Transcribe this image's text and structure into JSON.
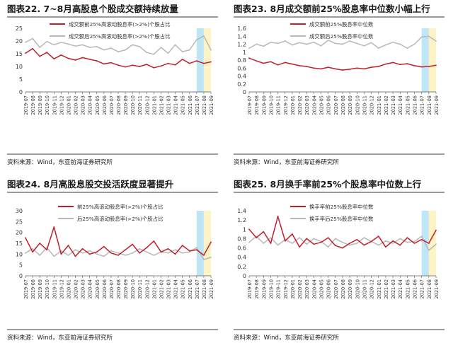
{
  "chart_data": [
    {
      "type": "line",
      "title": "图表22. 7~8月高股息个股成交额持续放量",
      "source": "资料来源：Wind，东亚前海证券研究所",
      "ylim": [
        0,
        25
      ],
      "yticks": [
        "0",
        "5",
        "10",
        "15",
        "20",
        "25"
      ],
      "x_dates": [
        "2019-07",
        "2019-08",
        "2019-09",
        "2019-10",
        "2019-11",
        "2019-12",
        "2020-01",
        "2020-02",
        "2020-03",
        "2020-04",
        "2020-05",
        "2020-06",
        "2020-07",
        "2020-08",
        "2020-09",
        "2020-10",
        "2020-11",
        "2020-12",
        "2021-01",
        "2021-02",
        "2021-03",
        "2021-04",
        "2021-05",
        "2021-06",
        "2021-07",
        "2021-08",
        "2021-09"
      ],
      "legend_placement": "top-center",
      "highlight": [
        {
          "from": "2021-07",
          "to": "2021-08",
          "color": "#bfe6f7"
        },
        {
          "from": "2021-08",
          "to": "2021-09",
          "color": "#fdf3c4"
        }
      ],
      "series": [
        {
          "name": "成交额前25%高滚动股息率(>2%)个股占比",
          "color": "#c0202a",
          "values": [
            15.2,
            17.0,
            14.0,
            15.5,
            13.0,
            14.5,
            13.2,
            12.5,
            13.5,
            12.8,
            12.2,
            11.0,
            11.5,
            10.5,
            9.8,
            10.5,
            10.0,
            10.8,
            9.5,
            10.2,
            11.2,
            10.6,
            12.8,
            11.2,
            12.2,
            11.2,
            11.8
          ]
        },
        {
          "name": "成交额后25%高滚动股息率(>2%)个股占比",
          "color": "#b8b8b8",
          "values": [
            19.5,
            21.0,
            17.5,
            19.8,
            18.5,
            19.5,
            18.8,
            18.0,
            18.5,
            17.5,
            17.8,
            16.5,
            17.2,
            15.8,
            16.5,
            18.5,
            17.8,
            15.5,
            14.8,
            17.5,
            15.2,
            18.5,
            15.8,
            16.5,
            20.5,
            22.0,
            16.5
          ]
        }
      ]
    },
    {
      "type": "line",
      "title": "图表23. 8月成交额前25%股息率中位数小幅上行",
      "source": "资料来源：Wind，东亚前海证券研究所",
      "ylim": [
        0,
        1.6
      ],
      "yticks": [
        "0",
        "0.2",
        "0.4",
        "0.6",
        "0.8",
        "1",
        "1.2",
        "1.4",
        "1.6"
      ],
      "x_dates": [
        "2019-07",
        "2019-08",
        "2019-09",
        "2019-10",
        "2019-11",
        "2019-12",
        "2020-01",
        "2020-02",
        "2020-03",
        "2020-04",
        "2020-05",
        "2020-06",
        "2020-07",
        "2020-08",
        "2020-09",
        "2020-10",
        "2020-11",
        "2020-12",
        "2021-01",
        "2021-02",
        "2021-03",
        "2021-04",
        "2021-05",
        "2021-06",
        "2021-07",
        "2021-08",
        "2021-09"
      ],
      "legend_placement": "top-center",
      "highlight": [
        {
          "from": "2021-07",
          "to": "2021-08",
          "color": "#bfe6f7"
        },
        {
          "from": "2021-08",
          "to": "2021-09",
          "color": "#fdf3c4"
        }
      ],
      "series": [
        {
          "name": "成交额前25%股息率中位数",
          "color": "#c0202a",
          "values": [
            0.85,
            0.78,
            0.72,
            0.76,
            0.68,
            0.74,
            0.7,
            0.66,
            0.64,
            0.6,
            0.58,
            0.62,
            0.58,
            0.55,
            0.57,
            0.6,
            0.58,
            0.62,
            0.64,
            0.7,
            0.74,
            0.69,
            0.71,
            0.66,
            0.63,
            0.64,
            0.67
          ]
        },
        {
          "name": "成交额后25%股息率中位数",
          "color": "#b8b8b8",
          "values": [
            1.1,
            1.2,
            1.15,
            1.25,
            1.22,
            1.28,
            1.18,
            1.24,
            1.2,
            1.25,
            1.16,
            1.3,
            1.22,
            1.2,
            1.28,
            1.22,
            1.16,
            1.24,
            1.1,
            1.18,
            1.25,
            1.2,
            1.1,
            1.2,
            1.38,
            1.4,
            1.28
          ]
        }
      ]
    },
    {
      "type": "line",
      "title": "图表24. 8月高股息股交投活跃度显著提升",
      "source": "资料来源：Wind，东亚前海证券研究所",
      "ylim": [
        0,
        30
      ],
      "yticks": [
        "0",
        "5",
        "10",
        "15",
        "20",
        "25",
        "30"
      ],
      "x_dates": [
        "2019-07",
        "2019-08",
        "2019-09",
        "2019-10",
        "2019-11",
        "2019-12",
        "2020-01",
        "2020-02",
        "2020-03",
        "2020-04",
        "2020-05",
        "2020-06",
        "2020-07",
        "2020-08",
        "2020-09",
        "2020-10",
        "2020-11",
        "2020-12",
        "2021-01",
        "2021-02",
        "2021-03",
        "2021-04",
        "2021-05",
        "2021-06",
        "2021-07",
        "2021-08",
        "2021-09"
      ],
      "legend_placement": "top-center",
      "highlight": [
        {
          "from": "2021-07",
          "to": "2021-08",
          "color": "#bfe6f7"
        },
        {
          "from": "2021-08",
          "to": "2021-09",
          "color": "#fdf3c4"
        }
      ],
      "series": [
        {
          "name": "前25%高滚动股息率(>2%)个股占比",
          "color": "#c0202a",
          "values": [
            17.5,
            11.0,
            15.0,
            12.0,
            22.5,
            10.0,
            14.0,
            9.0,
            12.5,
            10.0,
            11.0,
            13.5,
            10.5,
            9.5,
            12.0,
            14.5,
            10.5,
            13.0,
            16.0,
            11.0,
            12.5,
            10.0,
            14.0,
            11.5,
            12.0,
            9.5,
            15.5
          ]
        },
        {
          "name": "后25%高滚动股息率(>2%)个股占比",
          "color": "#b8b8b8",
          "values": [
            10.5,
            12.5,
            9.5,
            13.0,
            9.0,
            11.5,
            9.5,
            12.0,
            10.5,
            11.5,
            10.0,
            9.0,
            11.5,
            10.5,
            9.5,
            10.5,
            12.5,
            11.0,
            9.5,
            11.0,
            10.5,
            12.0,
            10.5,
            11.0,
            13.0,
            7.5,
            8.5
          ]
        }
      ]
    },
    {
      "type": "line",
      "title": "图表25. 8月换手率前25%个股息率中位数上行",
      "source": "资料来源：Wind，东亚前海证券研究所",
      "ylim": [
        0,
        1.4
      ],
      "yticks": [
        "0",
        "0.2",
        "0.4",
        "0.6",
        "0.8",
        "1",
        "1.2",
        "1.4"
      ],
      "x_dates": [
        "2019-07",
        "2019-08",
        "2019-09",
        "2019-10",
        "2019-11",
        "2019-12",
        "2020-01",
        "2020-02",
        "2020-03",
        "2020-04",
        "2020-05",
        "2020-06",
        "2020-07",
        "2020-08",
        "2020-09",
        "2020-10",
        "2020-11",
        "2020-12",
        "2021-01",
        "2021-02",
        "2021-03",
        "2021-04",
        "2021-05",
        "2021-06",
        "2021-07",
        "2021-08",
        "2021-09"
      ],
      "legend_placement": "top-center",
      "highlight": [
        {
          "from": "2021-07",
          "to": "2021-08",
          "color": "#bfe6f7"
        },
        {
          "from": "2021-08",
          "to": "2021-09",
          "color": "#fdf3c4"
        }
      ],
      "series": [
        {
          "name": "换手率前25%股息率中位数",
          "color": "#c0202a",
          "values": [
            1.0,
            0.82,
            0.95,
            0.7,
            1.28,
            0.75,
            0.9,
            0.62,
            0.8,
            0.68,
            0.72,
            0.82,
            0.65,
            0.6,
            0.7,
            0.78,
            0.66,
            0.74,
            0.85,
            0.62,
            0.75,
            0.66,
            0.82,
            0.7,
            0.78,
            0.7,
            0.98
          ]
        },
        {
          "name": "换手率后25%股息率中位数",
          "color": "#b8b8b8",
          "values": [
            0.72,
            0.85,
            0.7,
            0.82,
            0.66,
            0.78,
            0.7,
            0.82,
            0.68,
            0.8,
            0.74,
            0.62,
            0.8,
            0.72,
            0.66,
            0.7,
            0.82,
            0.74,
            0.66,
            0.75,
            0.7,
            0.8,
            0.72,
            0.74,
            0.85,
            0.55,
            0.68
          ]
        }
      ]
    }
  ]
}
